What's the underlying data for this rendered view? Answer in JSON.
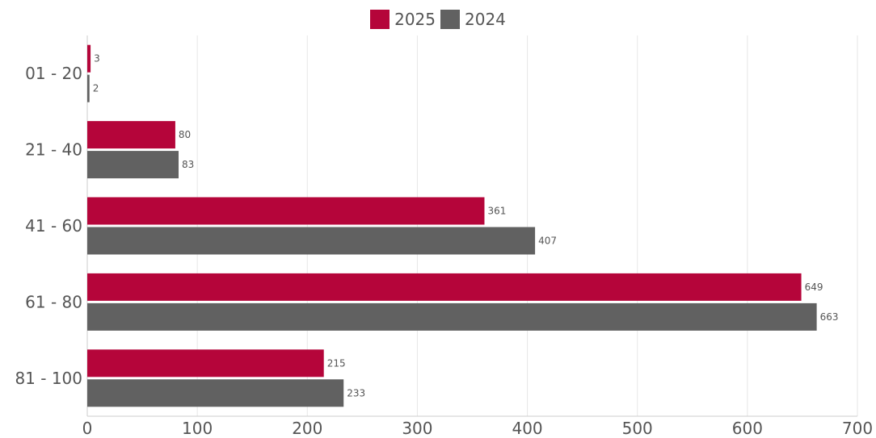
{
  "chart_data": {
    "type": "bar",
    "orientation": "horizontal",
    "categories": [
      "01 - 20",
      "21 - 40",
      "41 - 60",
      "61 - 80",
      "81 - 100"
    ],
    "series": [
      {
        "name": "2025",
        "color": "#b5053a",
        "values": [
          3,
          80,
          361,
          649,
          215
        ]
      },
      {
        "name": "2024",
        "color": "#616161",
        "values": [
          2,
          83,
          407,
          663,
          233
        ]
      }
    ],
    "xlim": [
      0,
      700
    ],
    "xticks": [
      "0",
      "100",
      "200",
      "300",
      "400",
      "500",
      "600",
      "700"
    ],
    "xtick_values": [
      0,
      100,
      200,
      300,
      400,
      500,
      600,
      700
    ],
    "grid": "vertical",
    "legend": "top-center",
    "title": "",
    "xlabel": "",
    "ylabel": ""
  }
}
